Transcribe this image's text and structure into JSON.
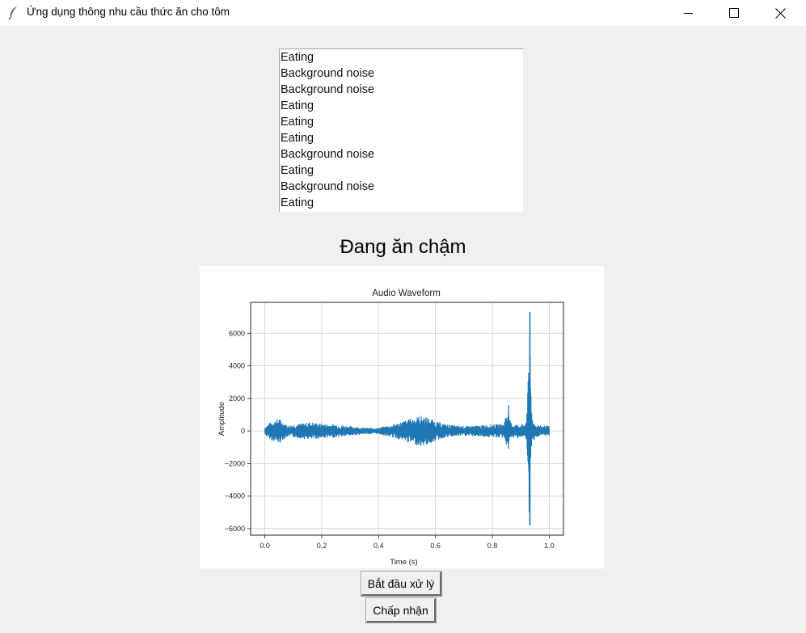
{
  "window": {
    "title": "Ứng dụng thông nhu cầu thức ăn cho tôm"
  },
  "listbox": {
    "items": [
      "Eating",
      "Background noise",
      "Background noise",
      "Eating",
      "Eating",
      "Eating",
      "Background noise",
      "Eating",
      "Background noise",
      "Eating"
    ]
  },
  "status": {
    "text": "Đang ăn chậm"
  },
  "buttons": {
    "start_label": "Bắt đầu xử lý",
    "accept_label": "Chấp nhận"
  },
  "colors": {
    "waveform": "#1f77b4",
    "background": "#f0f0f0"
  },
  "chart_data": {
    "type": "line",
    "title": "Audio Waveform",
    "xlabel": "Time (s)",
    "ylabel": "Amplitude",
    "xlim": [
      -0.05,
      1.05
    ],
    "ylim": [
      -6400,
      7900
    ],
    "xticks": [
      0.0,
      0.2,
      0.4,
      0.6,
      0.8,
      1.0
    ],
    "xtick_labels": [
      "0.0",
      "0.2",
      "0.4",
      "0.6",
      "0.8",
      "1.0"
    ],
    "yticks": [
      -6000,
      -4000,
      -2000,
      0,
      2000,
      4000,
      6000
    ],
    "ytick_labels": [
      "−6000",
      "−4000",
      "−2000",
      "0",
      "2000",
      "4000",
      "6000"
    ],
    "grid": true,
    "series": [
      {
        "envelope": {
          "x": [
            0.0,
            0.02,
            0.04,
            0.05,
            0.06,
            0.08,
            0.12,
            0.16,
            0.2,
            0.25,
            0.3,
            0.35,
            0.4,
            0.45,
            0.5,
            0.53,
            0.55,
            0.58,
            0.6,
            0.63,
            0.66,
            0.7,
            0.75,
            0.8,
            0.84,
            0.855,
            0.86,
            0.87,
            0.9,
            0.92,
            0.93,
            0.935,
            0.94,
            0.95,
            0.97,
            1.0
          ],
          "upper": [
            250,
            550,
            700,
            800,
            600,
            350,
            450,
            550,
            450,
            400,
            300,
            200,
            200,
            400,
            700,
            850,
            950,
            800,
            600,
            450,
            350,
            300,
            350,
            400,
            450,
            1600,
            700,
            450,
            400,
            500,
            7300,
            2600,
            900,
            400,
            350,
            300
          ],
          "lower": [
            -250,
            -550,
            -700,
            -800,
            -600,
            -350,
            -450,
            -550,
            -450,
            -400,
            -300,
            -200,
            -200,
            -400,
            -700,
            -850,
            -950,
            -800,
            -600,
            -450,
            -350,
            -300,
            -350,
            -400,
            -450,
            -1100,
            -700,
            -450,
            -400,
            -500,
            -5800,
            -1900,
            -900,
            -400,
            -350,
            -300
          ]
        }
      }
    ]
  }
}
